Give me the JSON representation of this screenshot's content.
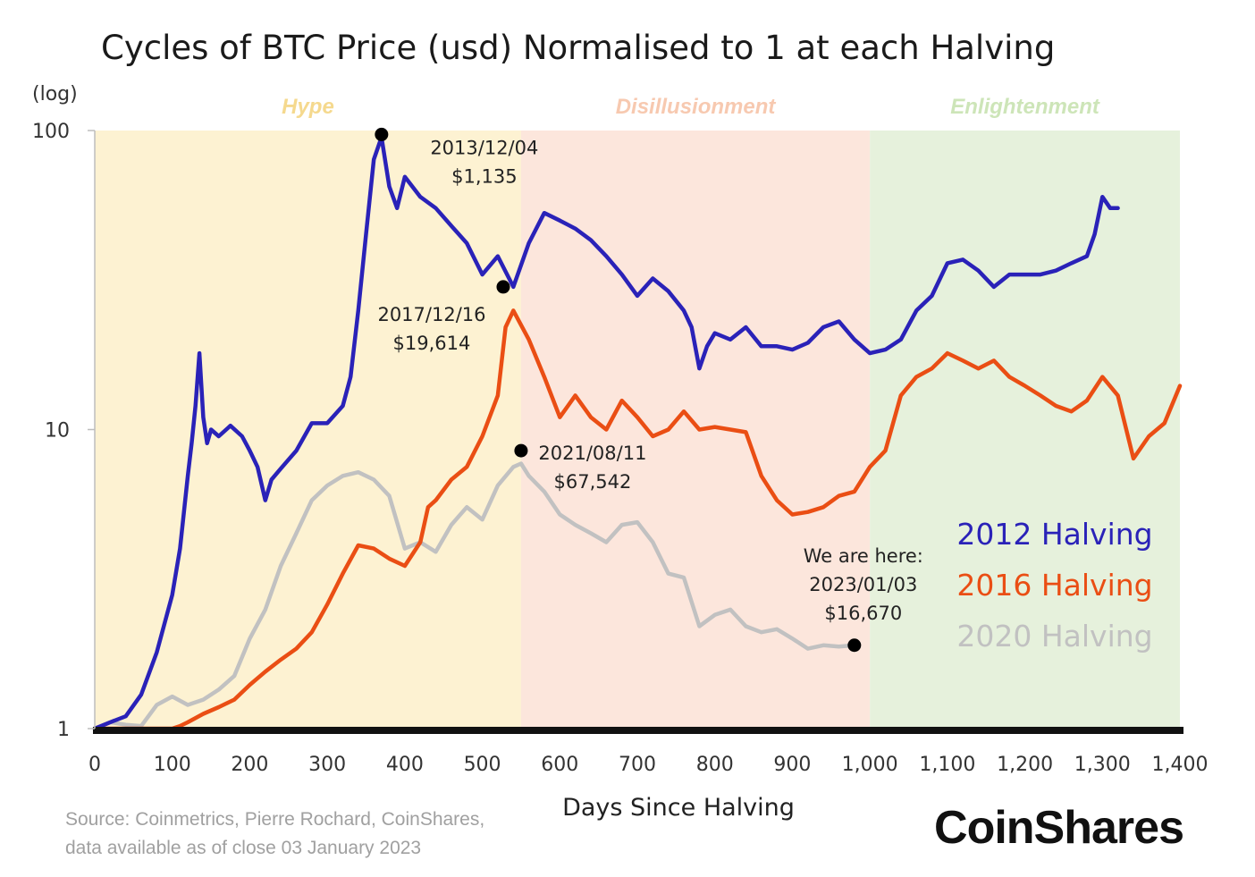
{
  "chart_data": {
    "type": "line",
    "title": "Cycles of BTC Price (usd) Normalised to 1 at each Halving",
    "xlabel": "Days Since Halving",
    "ylabel": "(log)",
    "yscale": "log",
    "xlim": [
      0,
      1400
    ],
    "ylim": [
      1,
      100
    ],
    "grid": false,
    "legend_position": "right",
    "x_ticks": [
      "0",
      "100",
      "200",
      "300",
      "400",
      "500",
      "600",
      "700",
      "800",
      "900",
      "1,000",
      "1,100",
      "1,200",
      "1,300",
      "1,400"
    ],
    "y_ticks": [
      "1",
      "10",
      "100"
    ],
    "phases": [
      {
        "label": "Hype",
        "x_start": 0,
        "x_end": 550,
        "color": "#fdf2d2",
        "label_color": "#f5d98e"
      },
      {
        "label": "Disillusionment",
        "x_start": 550,
        "x_end": 1000,
        "color": "#fce6dc",
        "label_color": "#f7c9b0"
      },
      {
        "label": "Enlightenment",
        "x_start": 1000,
        "x_end": 1400,
        "color": "#e6f1dc",
        "label_color": "#cde5b8"
      }
    ],
    "series": [
      {
        "name": "2012 Halving",
        "color": "#2a22b8",
        "x": [
          0,
          20,
          40,
          60,
          80,
          100,
          110,
          120,
          125,
          130,
          135,
          140,
          145,
          150,
          160,
          175,
          190,
          200,
          210,
          220,
          228,
          240,
          260,
          280,
          300,
          320,
          330,
          340,
          350,
          360,
          370,
          380,
          390,
          400,
          420,
          440,
          460,
          480,
          500,
          520,
          540,
          560,
          580,
          600,
          620,
          640,
          660,
          680,
          700,
          720,
          740,
          760,
          770,
          780,
          790,
          800,
          820,
          840,
          860,
          880,
          900,
          920,
          940,
          960,
          980,
          1000,
          1020,
          1040,
          1060,
          1080,
          1100,
          1120,
          1140,
          1160,
          1180,
          1200,
          1220,
          1240,
          1260,
          1280,
          1290,
          1300,
          1310,
          1320
        ],
        "y": [
          1,
          1.05,
          1.1,
          1.3,
          1.8,
          2.8,
          4,
          7,
          9,
          12,
          18,
          11,
          9,
          10,
          9.5,
          10.3,
          9.5,
          8.5,
          7.5,
          5.8,
          6.8,
          7.4,
          8.5,
          10.5,
          10.5,
          12,
          15,
          25,
          45,
          80,
          95,
          65,
          55,
          70,
          60,
          55,
          48,
          42,
          33,
          38,
          30,
          42,
          53,
          50,
          47,
          43,
          38,
          33,
          28,
          32,
          29,
          25,
          22,
          16,
          19,
          21,
          20,
          22,
          19,
          19,
          18.5,
          19.5,
          22,
          23,
          20,
          18,
          18.5,
          20,
          25,
          28,
          36,
          37,
          34,
          30,
          33,
          33,
          33,
          34,
          36,
          38,
          45,
          60,
          55,
          55
        ]
      },
      {
        "name": "2016 Halving",
        "color": "#ea4e14",
        "x": [
          0,
          20,
          50,
          80,
          100,
          110,
          120,
          140,
          160,
          180,
          200,
          220,
          240,
          260,
          280,
          300,
          320,
          340,
          360,
          380,
          400,
          420,
          430,
          440,
          460,
          480,
          500,
          520,
          530,
          540,
          560,
          580,
          600,
          620,
          640,
          660,
          680,
          700,
          720,
          740,
          760,
          780,
          800,
          820,
          840,
          860,
          880,
          900,
          920,
          940,
          960,
          980,
          1000,
          1020,
          1040,
          1060,
          1080,
          1100,
          1120,
          1140,
          1160,
          1180,
          1200,
          1220,
          1240,
          1260,
          1280,
          1300,
          1320,
          1340,
          1360,
          1380,
          1400
        ],
        "y": [
          1,
          1,
          1,
          1,
          1,
          1.02,
          1.05,
          1.12,
          1.18,
          1.25,
          1.4,
          1.55,
          1.7,
          1.85,
          2.1,
          2.6,
          3.3,
          4.1,
          4.0,
          3.7,
          3.5,
          4.2,
          5.5,
          5.8,
          6.8,
          7.5,
          9.5,
          13,
          22,
          25,
          20,
          15,
          11,
          13,
          11,
          10,
          12.5,
          11,
          9.5,
          10,
          11.5,
          10,
          10.2,
          10,
          9.8,
          7,
          5.8,
          5.2,
          5.3,
          5.5,
          6,
          6.2,
          7.5,
          8.5,
          13,
          15,
          16,
          18,
          17,
          16,
          17,
          15,
          14,
          13,
          12,
          11.5,
          12.5,
          15,
          13,
          8,
          9.5,
          10.5,
          14
        ]
      },
      {
        "name": "2020 Halving",
        "color": "#c1c1c1",
        "x": [
          0,
          20,
          40,
          60,
          80,
          100,
          120,
          140,
          160,
          180,
          200,
          220,
          240,
          260,
          280,
          300,
          320,
          340,
          360,
          380,
          400,
          420,
          440,
          460,
          480,
          500,
          520,
          540,
          550,
          560,
          580,
          600,
          620,
          640,
          660,
          680,
          700,
          720,
          740,
          760,
          780,
          800,
          820,
          840,
          860,
          880,
          900,
          920,
          940,
          960,
          980
        ],
        "y": [
          1,
          1.05,
          1.03,
          1.02,
          1.2,
          1.28,
          1.2,
          1.25,
          1.35,
          1.5,
          2.0,
          2.5,
          3.5,
          4.5,
          5.8,
          6.5,
          7.0,
          7.2,
          6.8,
          6.0,
          4.0,
          4.2,
          3.9,
          4.8,
          5.5,
          5.0,
          6.5,
          7.5,
          7.7,
          7.0,
          6.2,
          5.2,
          4.8,
          4.5,
          4.2,
          4.8,
          4.9,
          4.2,
          3.3,
          3.2,
          2.2,
          2.4,
          2.5,
          2.2,
          2.1,
          2.15,
          2.0,
          1.85,
          1.9,
          1.88,
          1.9
        ]
      }
    ],
    "annotations": [
      {
        "series": "2012 Halving",
        "x": 370,
        "y": 97,
        "date": "2013/12/04",
        "price": "$1,135"
      },
      {
        "series": "2016 Halving",
        "x": 527,
        "y": 30,
        "date": "2017/12/16",
        "price": "$19,614"
      },
      {
        "series": "2020 Halving",
        "x": 550,
        "y": 8.5,
        "date": "2021/08/11",
        "price": "$67,542"
      },
      {
        "series": "2020 Halving",
        "x": 980,
        "y": 1.9,
        "heading": "We are here:",
        "date": "2023/01/03",
        "price": "$16,670"
      }
    ]
  },
  "source": {
    "line1": "Source: Coinmetrics, Pierre Rochard, CoinShares,",
    "line2": "data available as of close 03 January 2023"
  },
  "brand": "CoinShares"
}
